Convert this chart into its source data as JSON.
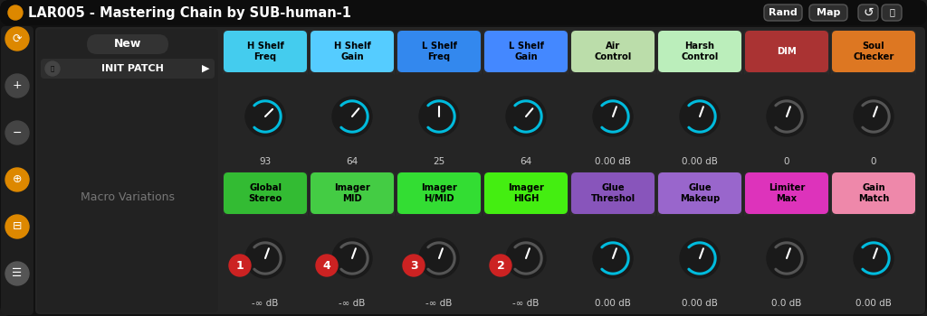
{
  "title": "LAR005 - Mastering Chain by SUB-human-1",
  "bg_color": "#1c1c1c",
  "top_row_labels": [
    "H Shelf\nFreq",
    "H Shelf\nGain",
    "L Shelf\nFreq",
    "L Shelf\nGain",
    "Air\nControl",
    "Harsh\nControl",
    "DIM",
    "Soul\nChecker"
  ],
  "top_row_colors": [
    "#44ccee",
    "#55ccff",
    "#3388ee",
    "#4488ff",
    "#bbddaa",
    "#bbeebb",
    "#aa3333",
    "#dd7722"
  ],
  "top_row_text_colors": [
    "#000000",
    "#000000",
    "#000000",
    "#000000",
    "#000000",
    "#000000",
    "#ffffff",
    "#000000"
  ],
  "top_row_values": [
    "93",
    "64",
    "25",
    "64",
    "0.00 dB",
    "0.00 dB",
    "0",
    "0"
  ],
  "top_row_knob_colors": [
    "#00bbdd",
    "#00bbdd",
    "#00bbdd",
    "#00bbdd",
    "#00bbdd",
    "#00bbdd",
    "#555555",
    "#555555"
  ],
  "top_row_tick_angles": [
    -45,
    -50,
    -90,
    -50,
    -70,
    -70,
    -70,
    -70
  ],
  "bot_row_labels": [
    "Global\nStereo",
    "Imager\nMID",
    "Imager\nH/MID",
    "Imager\nHIGH",
    "Glue\nThreshol",
    "Glue\nMakeup",
    "Limiter\nMax",
    "Gain\nMatch"
  ],
  "bot_row_colors": [
    "#33bb33",
    "#44cc44",
    "#33dd33",
    "#44ee11",
    "#8855bb",
    "#9966cc",
    "#dd33bb",
    "#ee88aa"
  ],
  "bot_row_text_colors": [
    "#000000",
    "#000000",
    "#000000",
    "#000000",
    "#000000",
    "#000000",
    "#000000",
    "#000000"
  ],
  "bot_row_values": [
    "-∞ dB",
    "-∞ dB",
    "-∞ dB",
    "-∞ dB",
    "0.00 dB",
    "0.00 dB",
    "0.0 dB",
    "0.00 dB"
  ],
  "bot_row_knob_colors": [
    "#555555",
    "#555555",
    "#555555",
    "#555555",
    "#00bbdd",
    "#00bbdd",
    "#555555",
    "#00bbdd"
  ],
  "bot_row_tick_angles": [
    -70,
    -70,
    -70,
    -70,
    -70,
    -70,
    -70,
    -70
  ],
  "macro_numbers": [
    {
      "num": "1",
      "col_idx": 0
    },
    {
      "num": "4",
      "col_idx": 1
    },
    {
      "num": "3",
      "col_idx": 2
    },
    {
      "num": "2",
      "col_idx": 3
    }
  ],
  "badge_color": "#cc2222",
  "rand_map_buttons": [
    "Rand",
    "Map"
  ],
  "init_patch_text": "INIT PATCH",
  "macro_variations_text": "Macro Variations",
  "new_button_text": "New",
  "sidebar_icon_colors": [
    "#dd8800",
    "#444444",
    "#444444",
    "#dd8800",
    "#dd8800",
    "#555555"
  ]
}
